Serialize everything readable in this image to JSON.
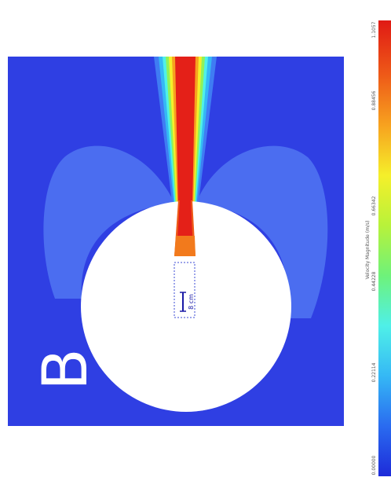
{
  "figure": {
    "panel_label": "B",
    "scale_label": "8 cm"
  },
  "colorbar": {
    "title": "Velocity Magnitude (m/s)",
    "ticks": [
      "0.00000",
      "0.22114",
      "0.44228",
      "0.66342",
      "0.88456",
      "1.1057"
    ],
    "range": [
      0,
      1.1057
    ],
    "colormap": [
      "#1d2bd9",
      "#2a6bf0",
      "#35b8f5",
      "#4ff0e8",
      "#6ef27a",
      "#b8f23a",
      "#f5ef2a",
      "#f7a21f",
      "#ee5a18",
      "#e01a14"
    ]
  },
  "colors": {
    "domain": "#2f3fe3",
    "recirculation": "#4b6df0",
    "cylinder": "#ffffff",
    "jet_core": "#e42018"
  }
}
